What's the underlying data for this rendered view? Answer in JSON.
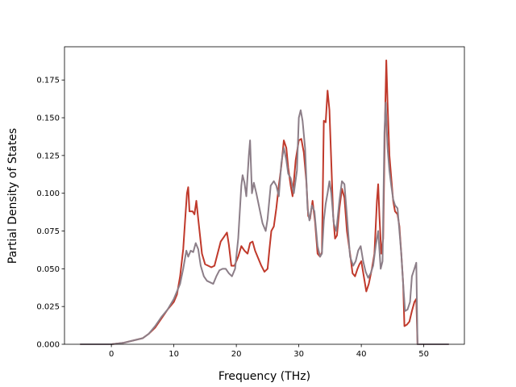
{
  "chart_data": {
    "type": "line",
    "title": "",
    "xlabel": "Frequency (THz)",
    "ylabel": "Partial Density of States",
    "xlim": [
      -7.5,
      56.5
    ],
    "ylim": [
      0.0,
      0.197
    ],
    "xticks": [
      0,
      10,
      20,
      30,
      40,
      50
    ],
    "yticks": [
      0.0,
      0.025,
      0.05,
      0.075,
      0.1,
      0.125,
      0.15,
      0.175
    ],
    "ytick_labels": [
      "0.000",
      "0.025",
      "0.050",
      "0.075",
      "0.100",
      "0.125",
      "0.150",
      "0.175"
    ],
    "grid": false,
    "legend": "none",
    "series": [
      {
        "color": "#c0392b",
        "points": [
          [
            -5,
            0
          ],
          [
            0,
            0
          ],
          [
            2,
            0.001
          ],
          [
            4,
            0.003
          ],
          [
            5,
            0.004
          ],
          [
            6,
            0.007
          ],
          [
            7,
            0.011
          ],
          [
            8,
            0.017
          ],
          [
            9,
            0.023
          ],
          [
            10,
            0.028
          ],
          [
            10.5,
            0.033
          ],
          [
            11,
            0.045
          ],
          [
            11.5,
            0.063
          ],
          [
            11.8,
            0.082
          ],
          [
            12.1,
            0.1
          ],
          [
            12.3,
            0.104
          ],
          [
            12.5,
            0.088
          ],
          [
            13,
            0.088
          ],
          [
            13.3,
            0.086
          ],
          [
            13.6,
            0.095
          ],
          [
            13.9,
            0.083
          ],
          [
            14.5,
            0.06
          ],
          [
            15,
            0.053
          ],
          [
            16,
            0.051
          ],
          [
            16.5,
            0.052
          ],
          [
            17,
            0.06
          ],
          [
            17.5,
            0.068
          ],
          [
            18,
            0.071
          ],
          [
            18.5,
            0.074
          ],
          [
            18.8,
            0.066
          ],
          [
            19.2,
            0.052
          ],
          [
            19.7,
            0.052
          ],
          [
            20.3,
            0.058
          ],
          [
            20.8,
            0.065
          ],
          [
            21.3,
            0.062
          ],
          [
            21.8,
            0.06
          ],
          [
            22.2,
            0.067
          ],
          [
            22.6,
            0.068
          ],
          [
            23,
            0.062
          ],
          [
            23.5,
            0.057
          ],
          [
            24,
            0.052
          ],
          [
            24.5,
            0.048
          ],
          [
            25,
            0.05
          ],
          [
            25.3,
            0.063
          ],
          [
            25.6,
            0.075
          ],
          [
            26,
            0.078
          ],
          [
            26.4,
            0.09
          ],
          [
            26.8,
            0.105
          ],
          [
            27.2,
            0.118
          ],
          [
            27.6,
            0.135
          ],
          [
            28,
            0.13
          ],
          [
            28.3,
            0.117
          ],
          [
            28.7,
            0.105
          ],
          [
            29,
            0.098
          ],
          [
            29.5,
            0.122
          ],
          [
            30,
            0.135
          ],
          [
            30.4,
            0.136
          ],
          [
            30.8,
            0.127
          ],
          [
            31.2,
            0.108
          ],
          [
            31.5,
            0.085
          ],
          [
            31.8,
            0.083
          ],
          [
            32.2,
            0.095
          ],
          [
            32.6,
            0.081
          ],
          [
            33,
            0.06
          ],
          [
            33.4,
            0.058
          ],
          [
            33.7,
            0.061
          ],
          [
            34,
            0.148
          ],
          [
            34.3,
            0.147
          ],
          [
            34.6,
            0.168
          ],
          [
            34.9,
            0.155
          ],
          [
            35.2,
            0.12
          ],
          [
            35.5,
            0.085
          ],
          [
            35.8,
            0.07
          ],
          [
            36.1,
            0.072
          ],
          [
            36.5,
            0.09
          ],
          [
            36.9,
            0.103
          ],
          [
            37.3,
            0.097
          ],
          [
            37.7,
            0.075
          ],
          [
            38.2,
            0.06
          ],
          [
            38.6,
            0.047
          ],
          [
            39,
            0.045
          ],
          [
            39.4,
            0.05
          ],
          [
            39.7,
            0.053
          ],
          [
            40,
            0.055
          ],
          [
            40.4,
            0.045
          ],
          [
            40.8,
            0.035
          ],
          [
            41.2,
            0.04
          ],
          [
            41.7,
            0.05
          ],
          [
            42.1,
            0.06
          ],
          [
            42.5,
            0.095
          ],
          [
            42.7,
            0.106
          ],
          [
            42.9,
            0.085
          ],
          [
            43.2,
            0.06
          ],
          [
            43.5,
            0.07
          ],
          [
            43.8,
            0.15
          ],
          [
            44,
            0.188
          ],
          [
            44.2,
            0.16
          ],
          [
            44.5,
            0.125
          ],
          [
            44.8,
            0.11
          ],
          [
            45.1,
            0.095
          ],
          [
            45.4,
            0.088
          ],
          [
            45.8,
            0.086
          ],
          [
            46.1,
            0.078
          ],
          [
            46.4,
            0.06
          ],
          [
            46.7,
            0.04
          ],
          [
            46.9,
            0.012
          ],
          [
            47.3,
            0.013
          ],
          [
            47.7,
            0.015
          ],
          [
            48.1,
            0.022
          ],
          [
            48.5,
            0.028
          ],
          [
            48.8,
            0.03
          ],
          [
            49.0,
            0
          ],
          [
            54,
            0
          ]
        ]
      },
      {
        "color": "#8c7e88",
        "points": [
          [
            -5,
            0
          ],
          [
            0,
            0
          ],
          [
            2,
            0.001
          ],
          [
            4,
            0.003
          ],
          [
            5,
            0.004
          ],
          [
            6,
            0.007
          ],
          [
            7,
            0.012
          ],
          [
            8,
            0.018
          ],
          [
            9,
            0.023
          ],
          [
            10,
            0.03
          ],
          [
            10.5,
            0.035
          ],
          [
            11,
            0.04
          ],
          [
            11.5,
            0.05
          ],
          [
            12,
            0.062
          ],
          [
            12.3,
            0.058
          ],
          [
            12.7,
            0.062
          ],
          [
            13.1,
            0.061
          ],
          [
            13.5,
            0.067
          ],
          [
            13.9,
            0.063
          ],
          [
            14.3,
            0.052
          ],
          [
            14.8,
            0.045
          ],
          [
            15.3,
            0.042
          ],
          [
            15.8,
            0.041
          ],
          [
            16.3,
            0.04
          ],
          [
            16.8,
            0.045
          ],
          [
            17.3,
            0.049
          ],
          [
            17.8,
            0.05
          ],
          [
            18.3,
            0.05
          ],
          [
            18.8,
            0.047
          ],
          [
            19.3,
            0.045
          ],
          [
            19.8,
            0.05
          ],
          [
            20.3,
            0.07
          ],
          [
            20.8,
            0.105
          ],
          [
            21,
            0.112
          ],
          [
            21.3,
            0.107
          ],
          [
            21.6,
            0.098
          ],
          [
            22,
            0.125
          ],
          [
            22.2,
            0.135
          ],
          [
            22.5,
            0.1
          ],
          [
            22.8,
            0.107
          ],
          [
            23.2,
            0.1
          ],
          [
            23.7,
            0.09
          ],
          [
            24.2,
            0.08
          ],
          [
            24.7,
            0.075
          ],
          [
            25,
            0.083
          ],
          [
            25.5,
            0.105
          ],
          [
            26,
            0.108
          ],
          [
            26.4,
            0.105
          ],
          [
            26.8,
            0.098
          ],
          [
            27.2,
            0.12
          ],
          [
            27.6,
            0.13
          ],
          [
            28,
            0.122
          ],
          [
            28.3,
            0.113
          ],
          [
            28.7,
            0.11
          ],
          [
            29.2,
            0.1
          ],
          [
            29.7,
            0.115
          ],
          [
            30,
            0.15
          ],
          [
            30.3,
            0.155
          ],
          [
            30.6,
            0.148
          ],
          [
            31,
            0.13
          ],
          [
            31.4,
            0.09
          ],
          [
            31.7,
            0.082
          ],
          [
            32.1,
            0.092
          ],
          [
            32.5,
            0.088
          ],
          [
            33,
            0.065
          ],
          [
            33.4,
            0.058
          ],
          [
            33.7,
            0.06
          ],
          [
            34,
            0.082
          ],
          [
            34.3,
            0.093
          ],
          [
            34.6,
            0.1
          ],
          [
            34.9,
            0.108
          ],
          [
            35.2,
            0.1
          ],
          [
            35.6,
            0.08
          ],
          [
            36,
            0.075
          ],
          [
            36.5,
            0.095
          ],
          [
            36.9,
            0.108
          ],
          [
            37.3,
            0.106
          ],
          [
            37.7,
            0.085
          ],
          [
            38.2,
            0.058
          ],
          [
            38.7,
            0.052
          ],
          [
            39.1,
            0.055
          ],
          [
            39.5,
            0.062
          ],
          [
            39.9,
            0.065
          ],
          [
            40.3,
            0.055
          ],
          [
            40.7,
            0.048
          ],
          [
            41.1,
            0.044
          ],
          [
            41.5,
            0.047
          ],
          [
            41.9,
            0.052
          ],
          [
            42.3,
            0.065
          ],
          [
            42.7,
            0.075
          ],
          [
            43.1,
            0.05
          ],
          [
            43.4,
            0.055
          ],
          [
            43.7,
            0.14
          ],
          [
            43.9,
            0.16
          ],
          [
            44.2,
            0.13
          ],
          [
            44.5,
            0.115
          ],
          [
            44.8,
            0.105
          ],
          [
            45.1,
            0.096
          ],
          [
            45.4,
            0.092
          ],
          [
            45.8,
            0.09
          ],
          [
            46.1,
            0.075
          ],
          [
            46.4,
            0.06
          ],
          [
            46.7,
            0.04
          ],
          [
            47,
            0.022
          ],
          [
            47.4,
            0.023
          ],
          [
            47.8,
            0.028
          ],
          [
            48.1,
            0.045
          ],
          [
            48.5,
            0.05
          ],
          [
            48.8,
            0.054
          ],
          [
            49.0,
            0
          ],
          [
            54,
            0
          ]
        ]
      }
    ]
  }
}
